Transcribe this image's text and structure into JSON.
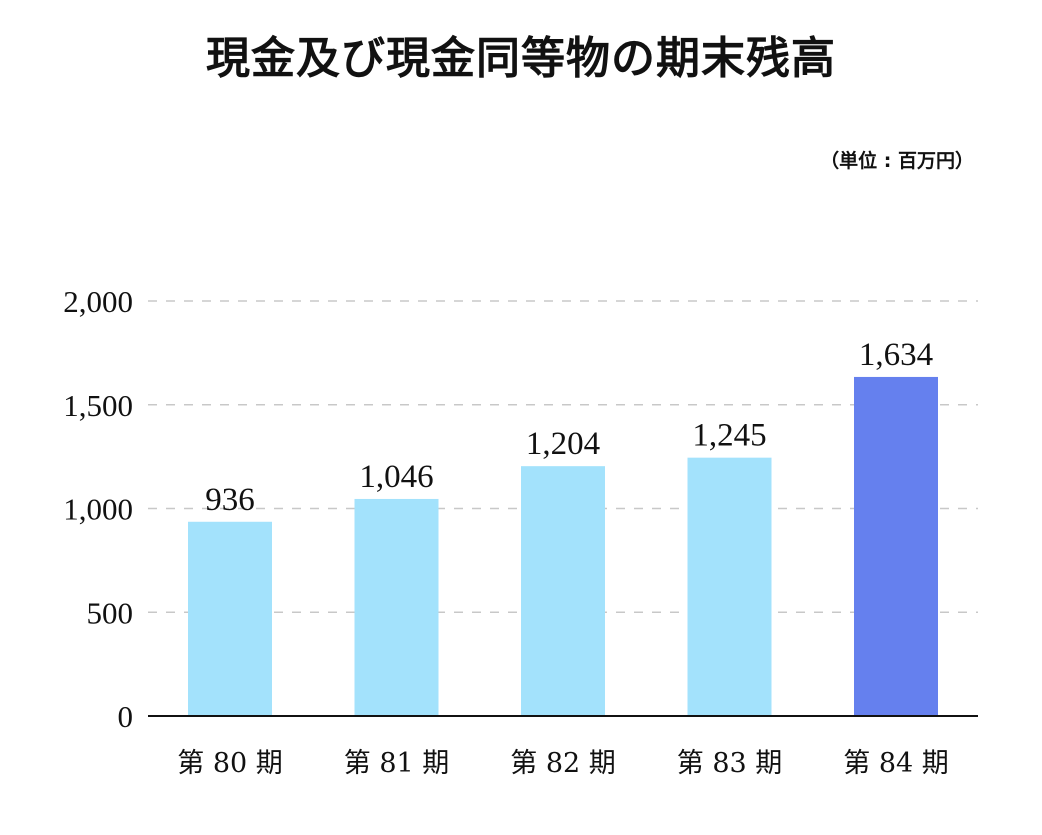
{
  "chart_data": {
    "type": "bar",
    "title": "現金及び現金同等物の期末残高",
    "unit_label": "（単位 : 百万円）",
    "categories": [
      "第 80 期",
      "第 81 期",
      "第 82 期",
      "第 83 期",
      "第 84 期"
    ],
    "values": [
      936,
      1046,
      1204,
      1245,
      1634
    ],
    "value_labels": [
      "936",
      "1,046",
      "1,204",
      "1,245",
      "1,634"
    ],
    "y_ticks": [
      0,
      500,
      1000,
      1500,
      2000
    ],
    "y_tick_labels": [
      "0",
      "500",
      "1,000",
      "1,500",
      "2,000"
    ],
    "ylim": [
      0,
      2000
    ],
    "grid": "horizontal dashed",
    "colors": {
      "bar_default": "#a3e2fc",
      "bar_highlight": "#6580ee",
      "grid": "#c8c8c8",
      "axis": "#111111"
    },
    "highlight_index": 4
  }
}
